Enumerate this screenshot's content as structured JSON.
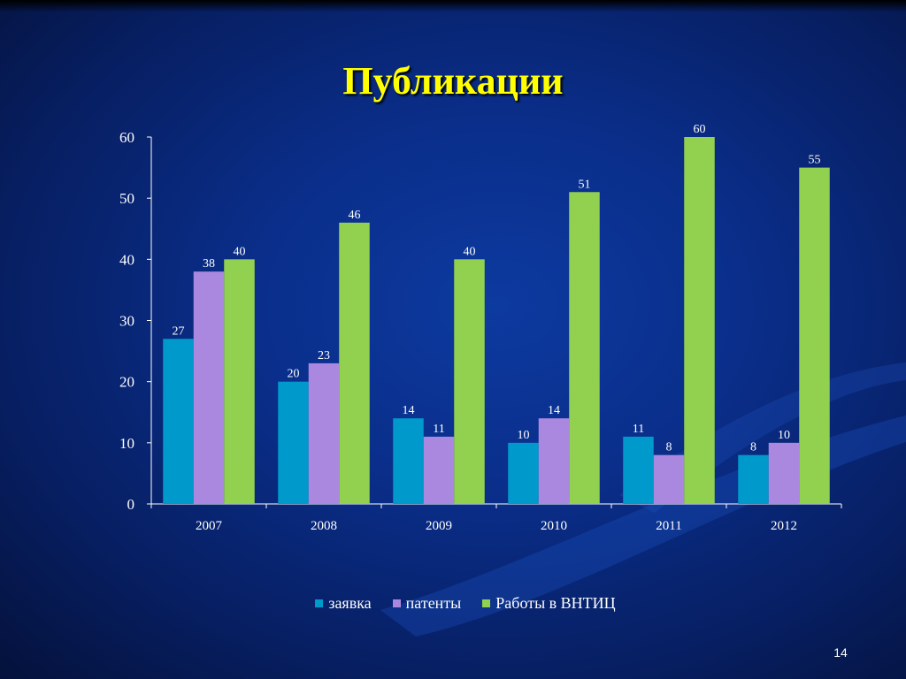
{
  "slide": {
    "title": "Публикации",
    "page_number": "14"
  },
  "colors": {
    "background": "#0a2e8a",
    "title": "#ffff00",
    "text": "#ffffff"
  },
  "chart_data": {
    "type": "bar",
    "title": "",
    "xlabel": "",
    "ylabel": "",
    "ylim": [
      0,
      60
    ],
    "yticks": [
      0,
      10,
      20,
      30,
      40,
      50,
      60
    ],
    "grid": false,
    "legend_position": "bottom",
    "categories": [
      "2007",
      "2008",
      "2009",
      "2010",
      "2011",
      "2012"
    ],
    "series": [
      {
        "name": "заявка",
        "color": "#0099cc",
        "values": [
          27,
          20,
          14,
          10,
          11,
          8
        ]
      },
      {
        "name": "патенты",
        "color": "#aa88e0",
        "values": [
          38,
          23,
          11,
          14,
          8,
          10
        ]
      },
      {
        "name": "Работы в ВНТИЦ",
        "color": "#92d050",
        "values": [
          40,
          46,
          40,
          51,
          60,
          55
        ]
      }
    ]
  }
}
